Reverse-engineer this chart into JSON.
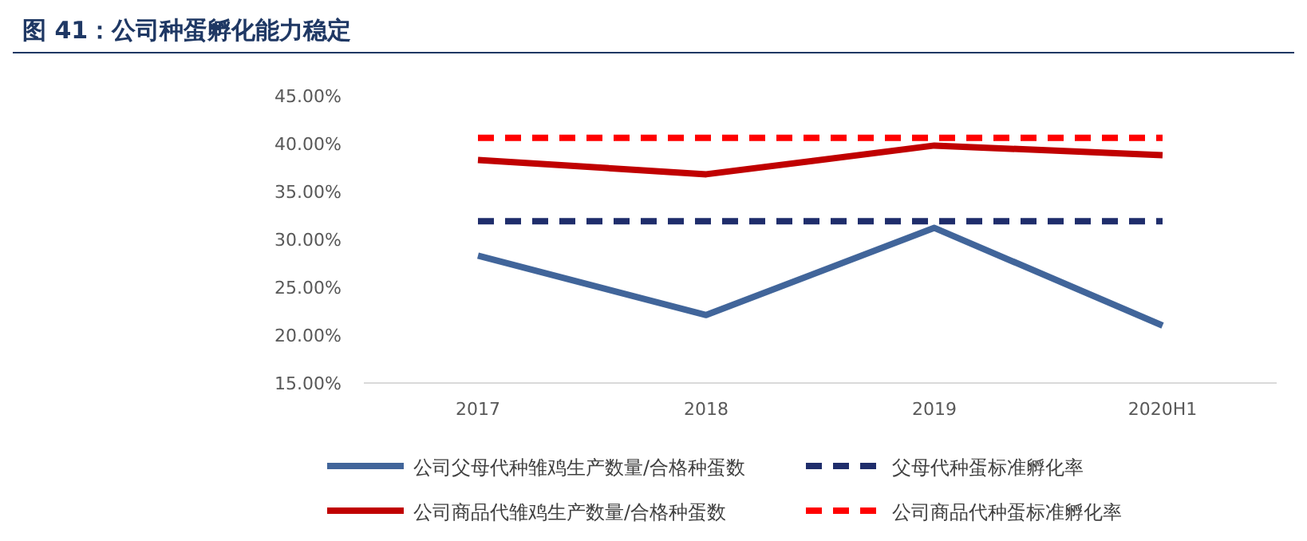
{
  "chart_data": {
    "type": "line",
    "title": "图 41：公司种蛋孵化能力稳定",
    "categories": [
      "2017",
      "2018",
      "2019",
      "2020H1"
    ],
    "series": [
      {
        "name": "公司父母代种雏鸡生产数量/合格种蛋数",
        "color": "#41659a",
        "values": [
          28.3,
          22.1,
          31.2,
          21.0
        ],
        "line_style": "solid"
      },
      {
        "name": "父母代种蛋标准孵化率",
        "color": "#1f2d6b",
        "values": [
          31.9,
          31.9,
          31.9,
          31.9
        ],
        "line_style": "dashed"
      },
      {
        "name": "公司商品代雏鸡生产数量/合格种蛋数",
        "color": "#c00000",
        "values": [
          38.3,
          36.8,
          39.8,
          38.8
        ],
        "line_style": "solid"
      },
      {
        "name": "公司商品代种蛋标准孵化率",
        "color": "#ff0000",
        "values": [
          40.6,
          40.6,
          40.6,
          40.6
        ],
        "line_style": "dashed"
      }
    ],
    "ylim": [
      15,
      45
    ],
    "yticks": [
      {
        "value": 15,
        "label": "15.00%"
      },
      {
        "value": 20,
        "label": "20.00%"
      },
      {
        "value": 25,
        "label": "25.00%"
      },
      {
        "value": 30,
        "label": "30.00%"
      },
      {
        "value": 35,
        "label": "35.00%"
      },
      {
        "value": 40,
        "label": "40.00%"
      },
      {
        "value": 45,
        "label": "45.00%"
      }
    ],
    "grid": false,
    "legend": "bottom",
    "marker": "none"
  }
}
